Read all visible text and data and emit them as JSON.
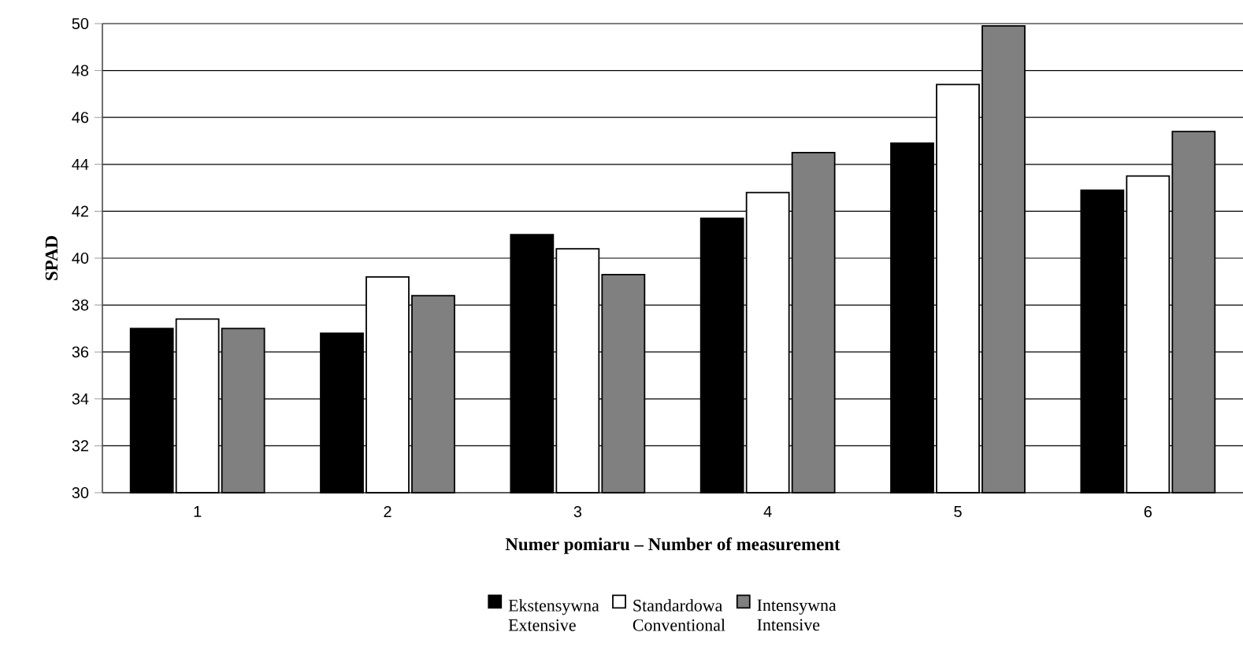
{
  "chart_data": {
    "type": "bar",
    "xlabel": "Numer pomiaru – Number of measurement",
    "ylabel": "SPAD",
    "categories": [
      "1",
      "2",
      "3",
      "4",
      "5",
      "6"
    ],
    "series": [
      {
        "name": "Ekstensywna Extensive",
        "color": "#000000",
        "values": [
          37.0,
          36.8,
          41.0,
          41.7,
          44.9,
          42.9
        ]
      },
      {
        "name": "Standardowa Conventional",
        "color": "#ffffff",
        "values": [
          37.4,
          39.2,
          40.4,
          42.8,
          47.4,
          43.5
        ]
      },
      {
        "name": "Intensywna Intensive",
        "color": "#808080",
        "values": [
          37.0,
          38.4,
          39.3,
          44.5,
          49.9,
          45.4
        ]
      }
    ],
    "ylim": [
      30,
      50
    ],
    "yticks": [
      30,
      32,
      34,
      36,
      38,
      40,
      42,
      44,
      46,
      48,
      50
    ],
    "grid": "y",
    "legend": "bottom"
  }
}
